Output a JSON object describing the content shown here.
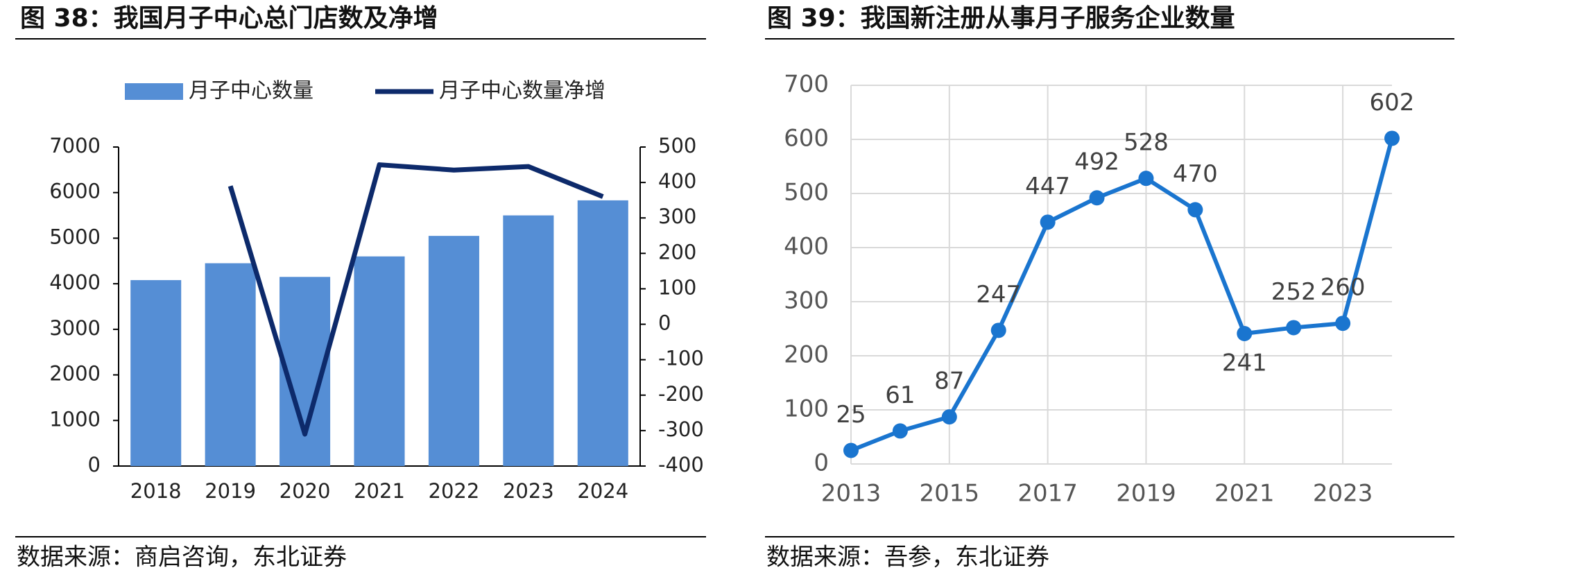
{
  "chart_data": [
    {
      "type": "bar_line",
      "title": "图 38：我国月子中心总门店数及净增",
      "source": "数据来源：商启咨询，东北证券",
      "categories": [
        "2018",
        "2019",
        "2020",
        "2021",
        "2022",
        "2023",
        "2024"
      ],
      "series": [
        {
          "name": "月子中心数量",
          "color": "#558ed5",
          "type": "bar",
          "values": [
            4080,
            4450,
            4150,
            4600,
            5050,
            5500,
            5830
          ]
        },
        {
          "name": "月子中心数量净增",
          "color": "#0d2a6b",
          "type": "line",
          "axis": "y2",
          "values": [
            null,
            390,
            -310,
            450,
            435,
            445,
            360
          ]
        }
      ],
      "ylim": [
        0,
        7000
      ],
      "yticks": [
        0,
        1000,
        2000,
        3000,
        4000,
        5000,
        6000,
        7000
      ],
      "y2lim": [
        -400,
        500
      ],
      "y2ticks": [
        -400,
        -300,
        -200,
        -100,
        0,
        100,
        200,
        300,
        400,
        500
      ],
      "legend": "top"
    },
    {
      "type": "line",
      "title": "图 39：我国新注册从事月子服务企业数量",
      "source": "数据来源：吾参，东北证券",
      "x": [
        2013,
        2014,
        2015,
        2016,
        2017,
        2018,
        2019,
        2020,
        2021,
        2022,
        2023,
        2024
      ],
      "series": [
        {
          "color": "#1a75cf",
          "values": [
            25,
            61,
            87,
            247,
            447,
            492,
            528,
            470,
            241,
            252,
            260,
            602
          ]
        }
      ],
      "xlim": [
        2013,
        2024
      ],
      "xticks": [
        2013,
        2015,
        2017,
        2019,
        2021,
        2023
      ],
      "ylim": [
        0,
        700
      ],
      "yticks": [
        0,
        100,
        200,
        300,
        400,
        500,
        600,
        700
      ],
      "grid": true
    }
  ]
}
